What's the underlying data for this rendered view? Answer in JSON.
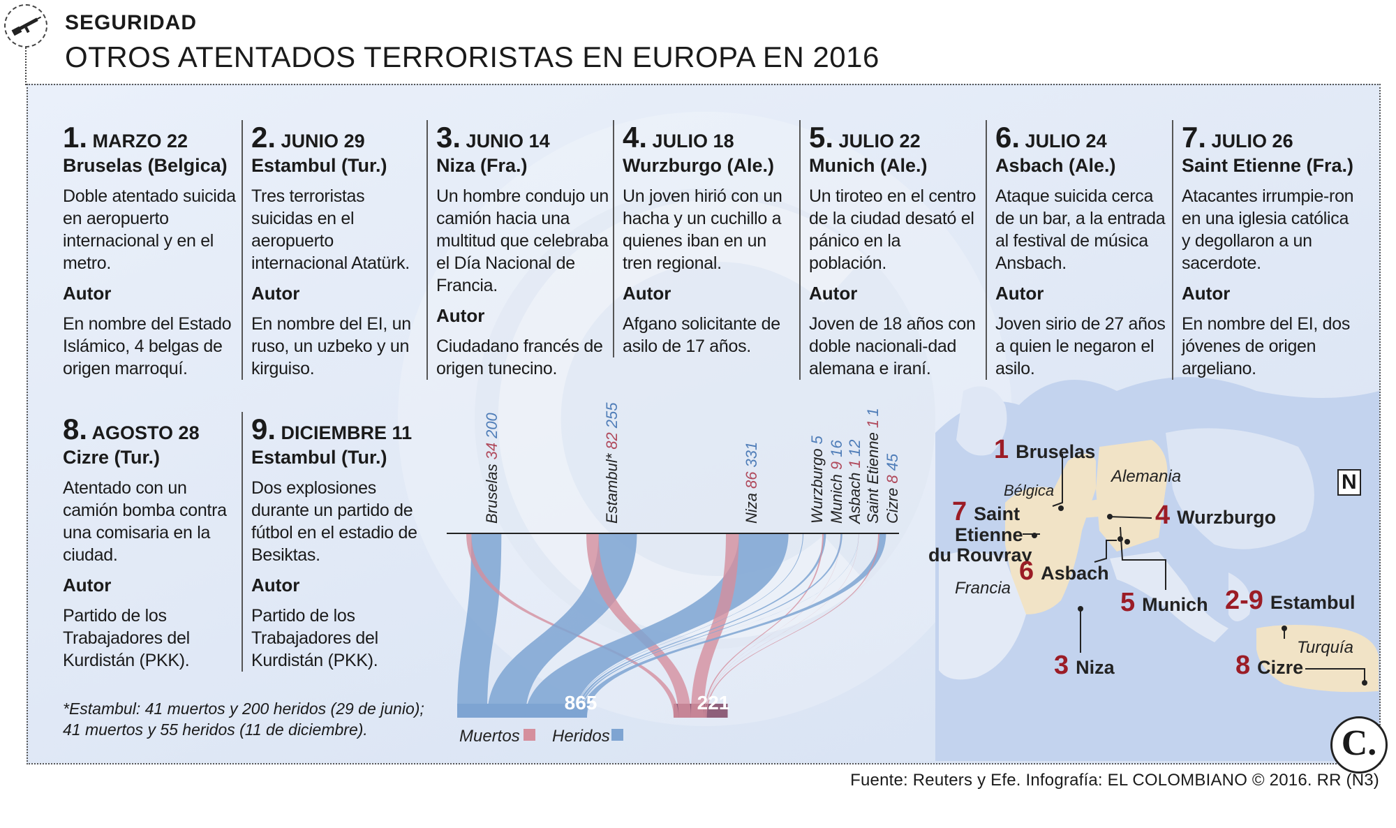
{
  "header": {
    "section": "SEGURIDAD",
    "title": "OTROS ATENTADOS TERRORISTAS EN EUROPA EN 2016",
    "icon": "rifle-icon"
  },
  "cards": [
    {
      "num": "1.",
      "date": "MARZO 22",
      "place": "Bruselas (Belgica)",
      "text": "Doble atentado suicida en aeropuerto internacional y en el metro.",
      "autor_label": "Autor",
      "autor": "En nombre del Estado Islámico, 4 belgas de origen marroquí."
    },
    {
      "num": "2.",
      "date": "JUNIO 29",
      "place": "Estambul (Tur.)",
      "text": "Tres terroristas suicidas en el aeropuerto internacional Atatürk.",
      "autor_label": "Autor",
      "autor": "En nombre del EI, un ruso, un uzbeko y un kirguiso."
    },
    {
      "num": "3.",
      "date": "JUNIO 14",
      "place": "Niza (Fra.)",
      "text": "Un hombre condujo un camión  hacia una multitud que celebraba el Día Nacional de Francia.",
      "autor_label": "Autor",
      "autor": "Ciudadano francés de origen tunecino."
    },
    {
      "num": "4.",
      "date": "JULIO 18",
      "place": "Wurzburgo (Ale.)",
      "text": "Un joven hirió con un hacha y un cuchillo a quienes iban en un tren regional.",
      "autor_label": "Autor",
      "autor": "Afgano solicitante de asilo de 17 años."
    },
    {
      "num": "5.",
      "date": "JULIO 22",
      "place": "Munich (Ale.)",
      "text": "Un tiroteo en el centro de la ciudad desató el pánico en la población.",
      "autor_label": "Autor",
      "autor": "Joven de 18 años con doble nacionali-dad alemana e iraní."
    },
    {
      "num": "6.",
      "date": "JULIO 24",
      "place": "Asbach (Ale.)",
      "text": "Ataque suicida cerca de un bar, a la entrada al festival de música Ansbach.",
      "autor_label": "Autor",
      "autor": "Joven sirio de 27 años a quien le negaron el asilo."
    },
    {
      "num": "7.",
      "date": "JULIO 26",
      "place": "Saint Etienne (Fra.)",
      "text": "Atacantes  irrumpie-ron en una iglesia católica y degollaron a un sacerdote.",
      "autor_label": "Autor",
      "autor": "En nombre del EI, dos jóvenes de origen argeliano."
    },
    {
      "num": "8.",
      "date": "AGOSTO 28",
      "place": "Cizre (Tur.)",
      "text": "Atentado con un camión bomba contra una comisaria en la ciudad.",
      "autor_label": "Autor",
      "autor": "Partido de los Trabajadores del Kurdistán (PKK)."
    },
    {
      "num": "9.",
      "date": "DICIEMBRE 11",
      "place": "Estambul (Tur.)",
      "text": "Dos explosiones durante un partido de fútbol en el estadio de Besiktas.",
      "autor_label": "Autor",
      "autor": "Partido de los Trabajadores del Kurdistán (PKK)."
    }
  ],
  "sankey": {
    "cities": [
      {
        "name": "Bruselas",
        "muertos": 34,
        "heridos": 200,
        "dead_label": "34",
        "inj_label": "200"
      },
      {
        "name": "Estambul*",
        "muertos": 82,
        "heridos": 255,
        "dead_label": "82",
        "inj_label": "255"
      },
      {
        "name": "Niza",
        "muertos": 86,
        "heridos": 331,
        "dead_label": "86",
        "inj_label": "331"
      },
      {
        "name": "Wurzburgo",
        "muertos": 0,
        "heridos": 5,
        "dead_label": "",
        "inj_label": "5"
      },
      {
        "name": "Munich",
        "muertos": 9,
        "heridos": 16,
        "dead_label": "9",
        "inj_label": "16"
      },
      {
        "name": "Asbach",
        "muertos": 1,
        "heridos": 12,
        "dead_label": "1",
        "inj_label": "12"
      },
      {
        "name": "Saint Etienne",
        "muertos": 1,
        "heridos": 1,
        "dead_label": "1",
        "inj_label": "1"
      },
      {
        "name": "Cizre",
        "muertos": 8,
        "heridos": 45,
        "dead_label": "8",
        "inj_label": "45"
      }
    ],
    "total_heridos": "865",
    "total_muertos": "221",
    "legend_muertos": "Muertos",
    "legend_heridos": "Heridos",
    "colors": {
      "muertos": "#d58f9d",
      "heridos": "#7ea4d2",
      "muertos_dark": "#8e5f7a",
      "heridos_dark": "#5c7eb3",
      "muertos_label": "#b04a5c",
      "heridos_label": "#4f7db8"
    }
  },
  "footnote": {
    "line1": "*Estambul: 41 muertos y 200 heridos (29 de junio);",
    "line2": "41 muertos y 55 heridos (11 de diciembre)."
  },
  "map": {
    "labels": [
      {
        "num": "1",
        "name": "Bruselas"
      },
      {
        "num": "7",
        "name": "Saint"
      },
      {
        "num": "",
        "name": "Etienne"
      },
      {
        "num": "",
        "name": "du Rouvray"
      },
      {
        "num": "6",
        "name": "Asbach"
      },
      {
        "num": "4",
        "name": "Wurzburgo"
      },
      {
        "num": "5",
        "name": "Munich"
      },
      {
        "num": "2-9",
        "name": "Estambul"
      },
      {
        "num": "3",
        "name": "Niza"
      },
      {
        "num": "8",
        "name": "Cizre"
      }
    ],
    "countries": [
      "Alemania",
      "Bélgica",
      "Francia",
      "Turquía"
    ],
    "north": "N",
    "colors": {
      "sea": "#b9cbeb",
      "land": "#f1e3c6",
      "other_land": "#e4eaf5"
    }
  },
  "source": "Fuente: Reuters y Efe. Infografía: EL COLOMBIANO © 2016. RR (N3)",
  "logo": "C."
}
